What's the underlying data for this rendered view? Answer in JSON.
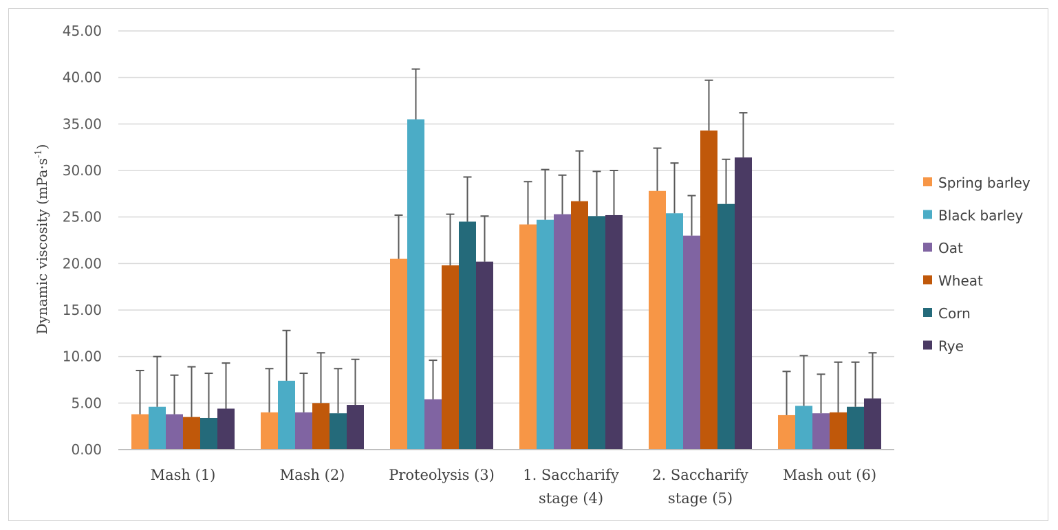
{
  "chart_data": {
    "type": "bar",
    "title": "",
    "xlabel": "",
    "ylabel": "Dynamic viscosity (mPa·s",
    "ylabel_sup": "-1",
    "ylabel_end": ")",
    "ylim": [
      0,
      45
    ],
    "yticks": [
      "0.00",
      "5.00",
      "10.00",
      "15.00",
      "20.00",
      "25.00",
      "30.00",
      "35.00",
      "40.00",
      "45.00"
    ],
    "grid": true,
    "legend_position": "right",
    "categories": [
      [
        "Mash (1)"
      ],
      [
        "Mash (2)"
      ],
      [
        "Proteolysis (3)"
      ],
      [
        "1. Saccharify",
        "stage (4)"
      ],
      [
        "2. Saccharify",
        "stage (5)"
      ],
      [
        "Mash out (6)"
      ]
    ],
    "series": [
      {
        "name": "Spring barley",
        "color": "#f79646",
        "values": [
          3.8,
          4.0,
          20.5,
          24.2,
          27.8,
          3.7
        ],
        "errors": [
          4.7,
          4.7,
          4.7,
          4.6,
          4.6,
          4.7
        ]
      },
      {
        "name": "Black barley",
        "color": "#4bacc6",
        "values": [
          4.6,
          7.4,
          35.5,
          24.7,
          25.4,
          4.7
        ],
        "errors": [
          5.4,
          5.4,
          5.4,
          5.4,
          5.4,
          5.4
        ]
      },
      {
        "name": "Oat",
        "color": "#8064a2",
        "values": [
          3.8,
          4.0,
          5.4,
          25.3,
          23.0,
          3.9
        ],
        "errors": [
          4.2,
          4.2,
          4.2,
          4.2,
          4.3,
          4.2
        ]
      },
      {
        "name": "Wheat",
        "color": "#c0580a",
        "values": [
          3.5,
          5.0,
          19.8,
          26.7,
          34.3,
          4.0
        ],
        "errors": [
          5.4,
          5.4,
          5.5,
          5.4,
          5.4,
          5.4
        ]
      },
      {
        "name": "Corn",
        "color": "#246a7a",
        "values": [
          3.4,
          3.9,
          24.5,
          25.1,
          26.4,
          4.6
        ],
        "errors": [
          4.8,
          4.8,
          4.8,
          4.8,
          4.8,
          4.8
        ]
      },
      {
        "name": "Rye",
        "color": "#4a3a63",
        "values": [
          4.4,
          4.8,
          20.2,
          25.2,
          31.4,
          5.5
        ],
        "errors": [
          4.9,
          4.9,
          4.9,
          4.8,
          4.8,
          4.9
        ]
      }
    ]
  }
}
